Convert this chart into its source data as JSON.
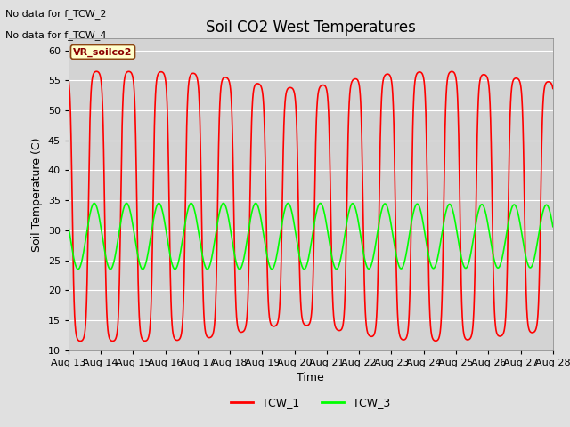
{
  "title": "Soil CO2 West Temperatures",
  "xlabel": "Time",
  "ylabel": "Soil Temperature (C)",
  "ylim": [
    10,
    62
  ],
  "yticks": [
    10,
    15,
    20,
    25,
    30,
    35,
    40,
    45,
    50,
    55,
    60
  ],
  "x_start_day": 13,
  "x_end_day": 28,
  "x_tick_days": [
    13,
    14,
    15,
    16,
    17,
    18,
    19,
    20,
    21,
    22,
    23,
    24,
    25,
    26,
    27,
    28
  ],
  "background_color": "#e0e0e0",
  "plot_bg_color": "#d3d3d3",
  "no_data_text1": "No data for f_TCW_2",
  "no_data_text2": "No data for f_TCW_4",
  "label_box_text": "VR_soilco2",
  "label_box_color": "#ffffcc",
  "label_box_border": "#8b4513",
  "tcw1_color": "#ff0000",
  "tcw3_color": "#00ff00",
  "tcw1_label": "TCW_1",
  "tcw3_label": "TCW_3",
  "line_width": 1.2,
  "title_fontsize": 12,
  "axis_fontsize": 9,
  "tick_fontsize": 8,
  "legend_fontsize": 9
}
